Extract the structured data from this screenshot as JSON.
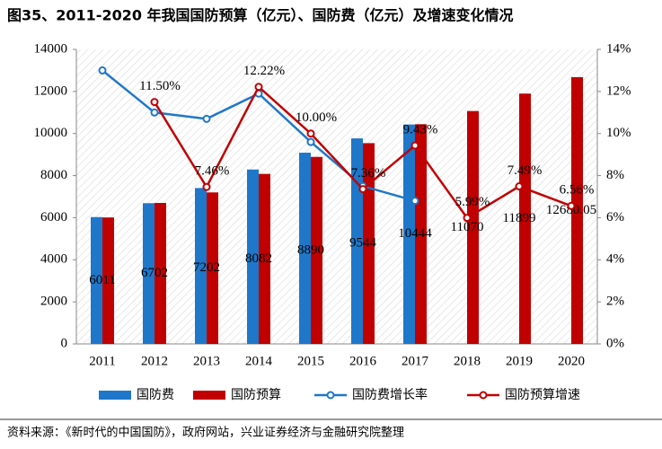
{
  "chart_data": {
    "type": "bar",
    "title": "图35、2011-2020 年我国国防预算（亿元）、国防费（亿元）及增速变化情况",
    "source": "资料来源：《新时代的中国国防》，政府网站，兴业证券经济与金融研究院整理",
    "categories": [
      "2011",
      "2012",
      "2013",
      "2014",
      "2015",
      "2016",
      "2017",
      "2018",
      "2019",
      "2020"
    ],
    "ylim": [
      0,
      14000
    ],
    "yticks": [
      0,
      2000,
      4000,
      6000,
      8000,
      10000,
      12000,
      14000
    ],
    "y2lim": [
      0,
      14
    ],
    "y2ticks": [
      {
        "value": 0,
        "label": "0%"
      },
      {
        "value": 2,
        "label": "2%"
      },
      {
        "value": 4,
        "label": "4%"
      },
      {
        "value": 6,
        "label": "6%"
      },
      {
        "value": 8,
        "label": "8%"
      },
      {
        "value": 10,
        "label": "10%"
      },
      {
        "value": 12,
        "label": "12%"
      },
      {
        "value": 14,
        "label": "14%"
      }
    ],
    "series": [
      {
        "name": "国防费",
        "type": "bar",
        "color": "#1f77c9",
        "values": [
          6030,
          6690,
          7410,
          8290,
          9090,
          9770,
          10430,
          null,
          null,
          null
        ]
      },
      {
        "name": "国防预算",
        "type": "bar",
        "color": "#c00000",
        "values": [
          6011,
          6702,
          7202,
          8082,
          8890,
          9544,
          10444,
          11070,
          11899,
          12680.05
        ]
      },
      {
        "name": "国防费增长率",
        "type": "line",
        "axis": "y2",
        "color": "#1f77c9",
        "values": [
          13.0,
          11.0,
          10.7,
          11.9,
          9.6,
          7.5,
          6.8,
          null,
          null,
          null
        ]
      },
      {
        "name": "国防预算增速",
        "type": "line",
        "axis": "y2",
        "color": "#c00000",
        "values": [
          null,
          11.5,
          7.46,
          12.22,
          10.0,
          7.36,
          9.43,
          5.99,
          7.49,
          6.56
        ],
        "value_labels": [
          null,
          "11.50%",
          "7.46%",
          "12.22%",
          "10.00%",
          "7.36%",
          "9.43%",
          "5.99%",
          "7.49%",
          "6.56%"
        ]
      }
    ]
  }
}
